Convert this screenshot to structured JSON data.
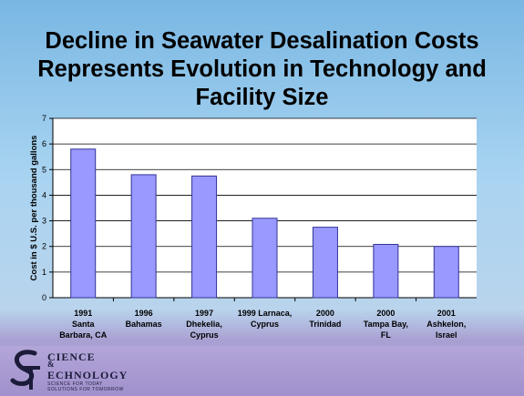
{
  "slide": {
    "title_lines": [
      "Decline in Seawater Desalination Costs",
      "Represents Evolution in Technology and",
      "Facility Size"
    ]
  },
  "logo": {
    "line1": "CIENCE",
    "line2": "&",
    "line3": "ECHNOLOGY",
    "tagline1": "SCIENCE FOR TODAY",
    "tagline2": "SOLUTIONS FOR TOMORROW"
  },
  "colors": {
    "bar_fill": "#9999ff",
    "bar_stroke": "#333399",
    "plot_background": "#ffffff",
    "gridline": "#000000"
  },
  "chart_data": {
    "type": "bar",
    "title": "",
    "xlabel": "",
    "ylabel": "Cost in $ U.S. per thousand gallons",
    "ylim": [
      0,
      7
    ],
    "yticks": [
      0,
      1,
      2,
      3,
      4,
      5,
      6,
      7
    ],
    "grid": true,
    "legend": "none",
    "categories": [
      [
        "1991",
        "Santa",
        "Barbara, CA"
      ],
      [
        "1996",
        "Bahamas"
      ],
      [
        "1997",
        "Dhekelia,",
        "Cyprus"
      ],
      [
        "1999 Larnaca,",
        "Cyprus"
      ],
      [
        "2000",
        "Trinidad"
      ],
      [
        "2000",
        "Tampa Bay,",
        "FL"
      ],
      [
        "2001",
        "Ashkelon,",
        "Israel"
      ]
    ],
    "values": [
      5.8,
      4.8,
      4.75,
      3.1,
      2.75,
      2.08,
      2.0
    ]
  }
}
